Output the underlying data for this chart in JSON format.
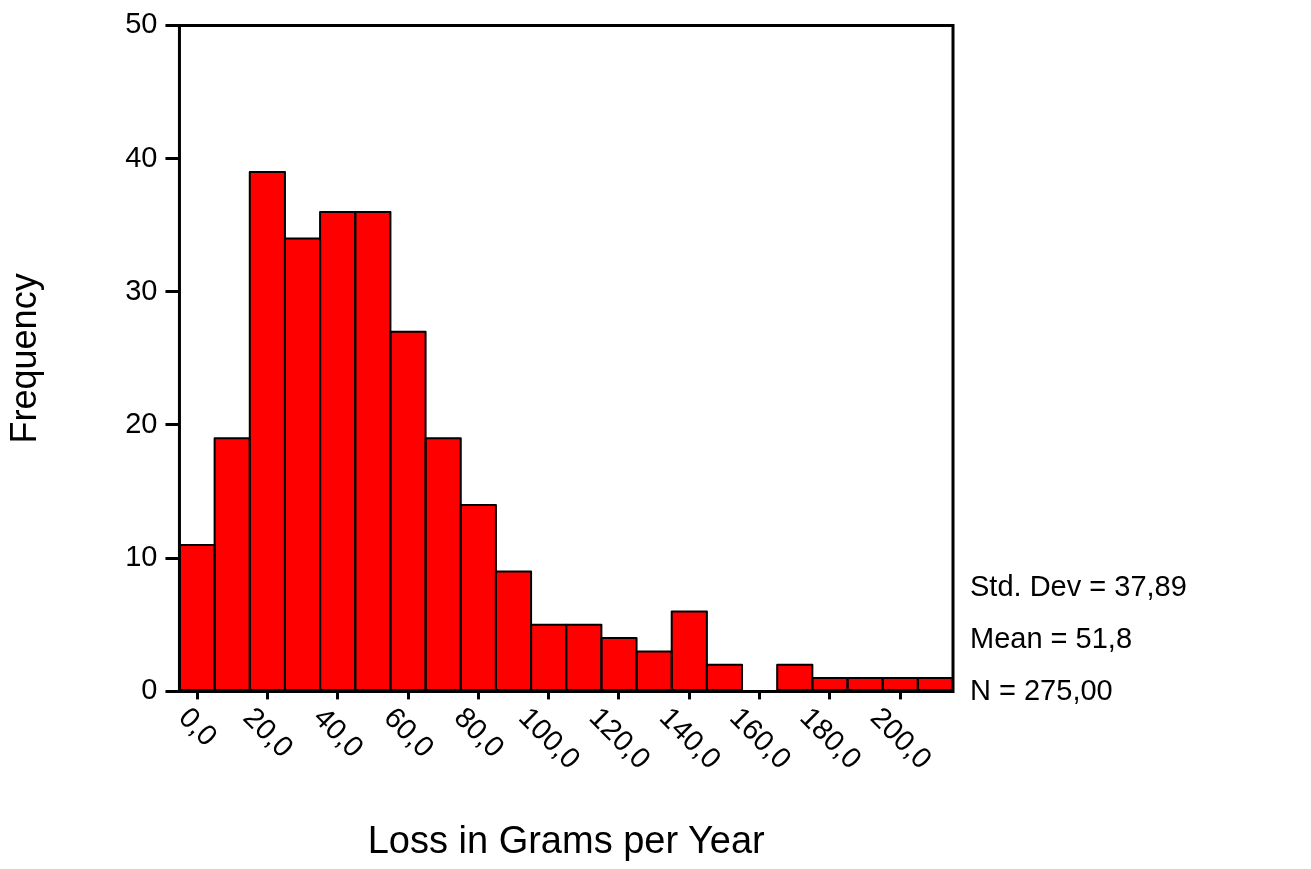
{
  "chart_data": {
    "type": "histogram",
    "bins": [
      -5,
      5,
      15,
      25,
      35,
      45,
      55,
      65,
      75,
      85,
      95,
      105,
      115,
      125,
      135,
      145,
      155,
      165,
      175,
      185,
      195,
      205,
      215
    ],
    "values": [
      11,
      19,
      39,
      34,
      36,
      36,
      27,
      19,
      14,
      9,
      5,
      5,
      4,
      3,
      6,
      2,
      0,
      2,
      1,
      1,
      1,
      1
    ],
    "color": "#ff0000",
    "xlim": [
      -5,
      215
    ],
    "xticks": [
      {
        "value": 0,
        "label": "0,0"
      },
      {
        "value": 20,
        "label": "20,0"
      },
      {
        "value": 40,
        "label": "40,0"
      },
      {
        "value": 60,
        "label": "60,0"
      },
      {
        "value": 80,
        "label": "80,0"
      },
      {
        "value": 100,
        "label": "100,0"
      },
      {
        "value": 120,
        "label": "120,0"
      },
      {
        "value": 140,
        "label": "140,0"
      },
      {
        "value": 160,
        "label": "160,0"
      },
      {
        "value": 180,
        "label": "180,0"
      },
      {
        "value": 200,
        "label": "200,0"
      }
    ],
    "ylim": [
      0,
      50
    ],
    "yticks": [
      0,
      10,
      20,
      30,
      40,
      50
    ],
    "xlabel": "Loss in Grams per Year",
    "ylabel": "Frequency",
    "annotations": [
      "Std. Dev = 37,89",
      "Mean = 51,8",
      "N = 275,00"
    ],
    "grid": false,
    "legend": false
  }
}
